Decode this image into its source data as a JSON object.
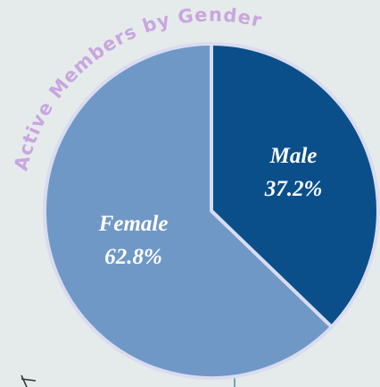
{
  "chart_data": {
    "type": "pie",
    "title": "Active Members by Gender",
    "categories": [
      "Male",
      "Female"
    ],
    "values": [
      37.2,
      62.8
    ],
    "value_labels": [
      "37.2%",
      "62.8%"
    ],
    "colors": [
      "#0b4f8a",
      "#6f98c6"
    ]
  }
}
